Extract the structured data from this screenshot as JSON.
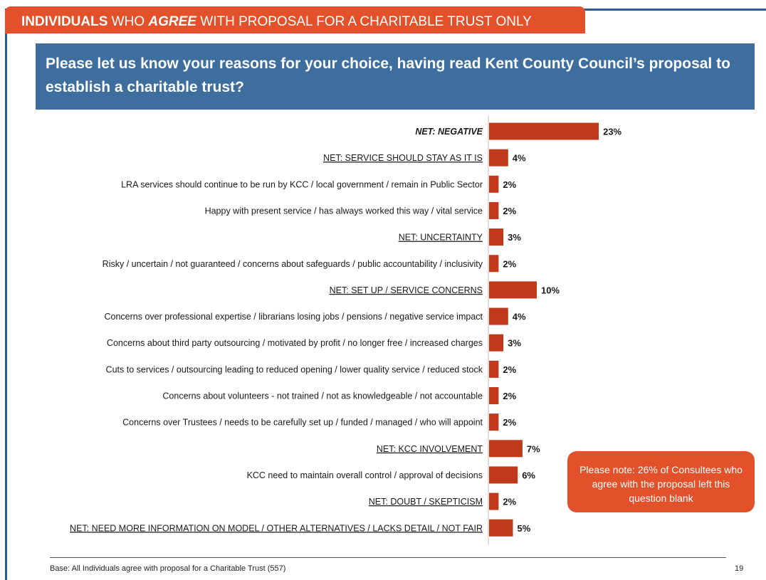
{
  "header": {
    "tab": {
      "part1": "INDIVIDUALS",
      "part2": " WHO ",
      "part3": "AGREE",
      "part4": " WITH PROPOSAL FOR A CHARITABLE TRUST ONLY"
    },
    "question": "Please let us know your reasons for your choice, having read Kent County Council’s proposal to establish a charitable trust?"
  },
  "note": "Please note: 26% of Consultees who agree with the proposal left this question blank",
  "footer": {
    "base": "Base: All Individuals agree with proposal for a Charitable Trust (557)",
    "page_number": "19"
  },
  "colors": {
    "accent": "#e2512a",
    "header_blue": "#3e6e9d",
    "frame_blue": "#2f5b8c",
    "bar": "#c0391b"
  },
  "chart_data": {
    "type": "bar",
    "orientation": "horizontal",
    "value_suffix": "%",
    "grid": false,
    "categories": [
      "NET: NEGATIVE",
      "NET: SERVICE SHOULD STAY AS IT IS",
      "LRA services should continue to be run by KCC / local government / remain in Public Sector",
      "Happy with present service  / has always worked this way / vital service",
      "NET: UNCERTAINTY",
      "Risky / uncertain / not guaranteed / concerns about safeguards / public accountability / inclusivity",
      "NET: SET UP / SERVICE CONCERNS",
      "Concerns over professional expertise / librarians losing jobs / pensions / negative service impact",
      "Concerns about third party outsourcing / motivated by profit / no longer free / increased charges",
      "Cuts to services / outsourcing leading to reduced opening / lower quality service / reduced stock",
      "Concerns about volunteers - not trained / not as knowledgeable / not accountable",
      "Concerns over Trustees / needs to be carefully set up / funded / managed / who will appoint",
      "NET: KCC INVOLVEMENT",
      "KCC need to maintain overall control / approval of decisions",
      "NET: DOUBT / SKEPTICISM",
      "NET: NEED MORE INFORMATION ON MODEL / OTHER ALTERNATIVES / LACKS DETAIL / NOT FAIR"
    ],
    "values": [
      23,
      4,
      2,
      2,
      3,
      2,
      10,
      4,
      3,
      2,
      2,
      2,
      7,
      6,
      2,
      5
    ],
    "label_style": [
      "italic",
      "underline",
      "plain",
      "plain",
      "underline",
      "plain",
      "underline",
      "plain",
      "plain",
      "plain",
      "plain",
      "plain",
      "underline",
      "plain",
      "underline",
      "underline"
    ],
    "xlim": [
      0,
      24
    ],
    "title": "",
    "xlabel": "",
    "ylabel": ""
  }
}
